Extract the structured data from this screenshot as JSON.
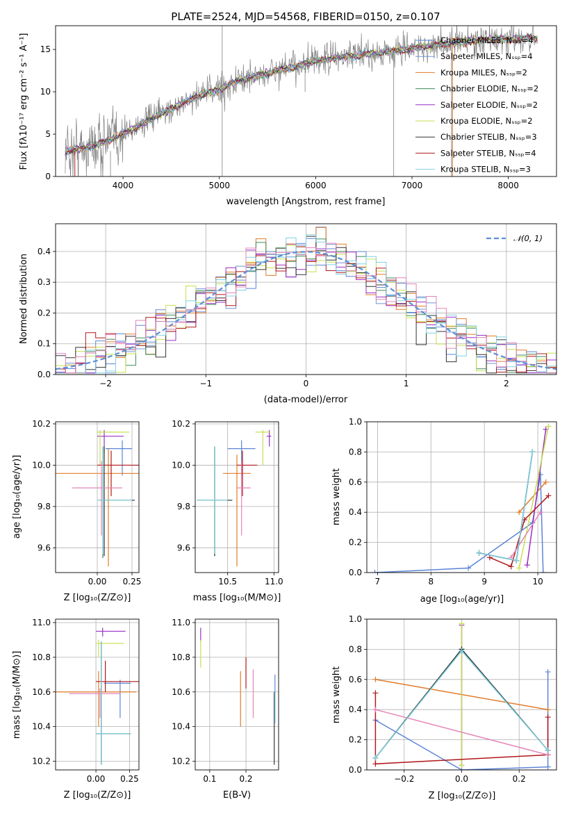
{
  "colors": {
    "chab_miles": "#5b84d6",
    "salp_miles": "#6b95d8",
    "krou_miles": "#e07b2a",
    "chab_elodie": "#3e8a5a",
    "salp_elodie": "#9a2fc4",
    "krou_elodie": "#c6e04e",
    "chab_stelib": "#333333",
    "salp_stelib": "#b0181c",
    "krou_stelib": "#7fd0e0",
    "pink": "#e484b8",
    "gray": "#7f7f7f",
    "normal": "#5b8fd6"
  },
  "chart_data": [
    {
      "type": "line",
      "title": "PLATE=2524, MJD=54568, FIBERID=0150, z=0.107",
      "xlabel": "wavelength [Angstrom, rest frame]",
      "ylabel": "Flux [fλ10⁻¹⁷ erg cm⁻² s⁻¹ A⁻¹]",
      "xlim": [
        3300,
        8500
      ],
      "ylim": [
        0,
        17.8
      ],
      "xticks": [
        "4000",
        "5000",
        "6000",
        "7000",
        "8000"
      ],
      "yticks": [
        "0",
        "5",
        "10",
        "15"
      ],
      "grid": false,
      "legend": "right",
      "series": [
        {
          "name": "Chabrier MILES, Nₛₛₚ=4",
          "color": "#5b84d6"
        },
        {
          "name": "Salpeter MILES, Nₛₛₚ=4",
          "color": "#6b95d8"
        },
        {
          "name": "Kroupa MILES, Nₛₛₚ=2",
          "color": "#e07b2a"
        },
        {
          "name": "Chabrier ELODIE, Nₛₛₚ=2",
          "color": "#3e8a5a"
        },
        {
          "name": "Salpeter ELODIE, Nₛₛₚ=2",
          "color": "#9a2fc4"
        },
        {
          "name": "Kroupa ELODIE, Nₛₛₚ=2",
          "color": "#c6e04e"
        },
        {
          "name": "Chabrier STELIB, Nₛₛₚ=3",
          "color": "#333333"
        },
        {
          "name": "Salpeter STELIB, Nₛₛₚ=4",
          "color": "#b0181c"
        },
        {
          "name": "Kroupa STELIB, Nₛₛₚ=3",
          "color": "#7fd0e0"
        }
      ],
      "continuum": {
        "x": [
          3400,
          3550,
          3700,
          3900,
          4000,
          4200,
          4500,
          4800,
          5000,
          5200,
          5500,
          5800,
          6000,
          6200,
          6500,
          6800,
          7000,
          7300,
          7600,
          8000,
          8300
        ],
        "y": [
          3.0,
          3.3,
          3.7,
          4.5,
          5.0,
          6.2,
          8.0,
          9.6,
          10.3,
          11.3,
          12.2,
          13.0,
          13.6,
          14.0,
          14.4,
          14.8,
          15.1,
          15.6,
          16.0,
          16.2,
          16.4
        ]
      }
    },
    {
      "type": "histogram",
      "xlabel": "(data-model)/error",
      "ylabel": "Normed distribution",
      "xlim": [
        -2.5,
        2.5
      ],
      "ylim": [
        0,
        0.49
      ],
      "xticks": [
        "−2",
        "−1",
        "0",
        "1",
        "2"
      ],
      "yticks": [
        "0.0",
        "0.1",
        "0.2",
        "0.3",
        "0.4"
      ],
      "grid": true,
      "legend": "top-right",
      "normal_label": "𝒩(0, 1)",
      "bin_width": 0.1
    },
    {
      "type": "scatter",
      "xlabel": "Z [log₁₀(Z/Z⊙)]",
      "ylabel": "age  [log₁₀(age/yr)]",
      "xlim": [
        -0.3,
        0.3
      ],
      "ylim": [
        9.48,
        10.21
      ],
      "xticks": [
        "0.00",
        "0.25"
      ],
      "yticks": [
        "9.6",
        "9.8",
        "10.0",
        "10.2"
      ],
      "points": [
        {
          "color": "#5b84d6",
          "x": 0.18,
          "y": 10.08,
          "xe": [
            0.06,
            0.25
          ],
          "ye": [
            9.95,
            10.12
          ]
        },
        {
          "color": "#e07b2a",
          "x": 0.08,
          "y": 9.96,
          "xe": [
            -0.3,
            0.3
          ],
          "ye": [
            9.51,
            10.08
          ]
        },
        {
          "color": "#3e8a5a",
          "x": 0.04,
          "y": 9.83,
          "xe": [
            0.02,
            0.26
          ],
          "ye": [
            9.55,
            10.09
          ]
        },
        {
          "color": "#9a2fc4",
          "x": 0.05,
          "y": 10.14,
          "xe": [
            0.0,
            0.19
          ],
          "ye": [
            10.06,
            10.17
          ]
        },
        {
          "color": "#c6e04e",
          "x": 0.02,
          "y": 10.16,
          "xe": [
            0.0,
            0.23
          ],
          "ye": [
            10.0,
            10.17
          ]
        },
        {
          "color": "#333333",
          "x": 0.05,
          "y": 9.83,
          "xe": [
            0.0,
            0.27
          ],
          "ye": [
            9.56,
            10.09
          ]
        },
        {
          "color": "#b0181c",
          "x": 0.1,
          "y": 10.0,
          "xe": [
            0.0,
            0.32
          ],
          "ye": [
            9.85,
            10.07
          ]
        },
        {
          "color": "#e484b8",
          "x": 0.03,
          "y": 9.89,
          "xe": [
            -0.18,
            0.18
          ],
          "ye": [
            9.66,
            10.02
          ]
        },
        {
          "color": "#7fd0e0",
          "x": 0.04,
          "y": 9.83,
          "xe": [
            0.0,
            0.25
          ],
          "ye": [
            9.57,
            10.09
          ]
        }
      ]
    },
    {
      "type": "scatter",
      "xlabel": "mass [log₁₀(M/M⊙)]",
      "xlim": [
        10.15,
        11.05
      ],
      "ylim": [
        9.48,
        10.21
      ],
      "xticks": [
        "10.5",
        "11.0"
      ],
      "yticks": [
        "9.6",
        "9.8",
        "10.0",
        "10.2"
      ],
      "points": [
        {
          "color": "#5b84d6",
          "x": 10.65,
          "y": 10.08,
          "xe": [
            10.5,
            10.8
          ],
          "ye": [
            9.95,
            10.12
          ]
        },
        {
          "color": "#e07b2a",
          "x": 10.6,
          "y": 9.96,
          "xe": [
            10.45,
            10.75
          ],
          "ye": [
            9.51,
            10.05
          ]
        },
        {
          "color": "#3e8a5a",
          "x": 10.36,
          "y": 9.83,
          "xe": [
            10.17,
            10.55
          ],
          "ye": [
            9.56,
            10.09
          ]
        },
        {
          "color": "#9a2fc4",
          "x": 10.95,
          "y": 10.14,
          "xe": [
            10.92,
            10.97
          ],
          "ye": [
            10.09,
            10.17
          ]
        },
        {
          "color": "#c6e04e",
          "x": 10.88,
          "y": 10.16,
          "xe": [
            10.8,
            10.95
          ],
          "ye": [
            10.0,
            10.17
          ]
        },
        {
          "color": "#333333",
          "x": 10.36,
          "y": 9.83,
          "xe": [
            10.17,
            10.55
          ],
          "ye": [
            9.56,
            10.09
          ]
        },
        {
          "color": "#b0181c",
          "x": 10.66,
          "y": 10.0,
          "xe": [
            10.6,
            10.82
          ],
          "ye": [
            9.85,
            10.07
          ]
        },
        {
          "color": "#e484b8",
          "x": 10.65,
          "y": 9.89,
          "xe": [
            10.6,
            10.75
          ],
          "ye": [
            9.66,
            10.02
          ]
        },
        {
          "color": "#7fd0e0",
          "x": 10.36,
          "y": 9.83,
          "xe": [
            10.17,
            10.5
          ],
          "ye": [
            9.57,
            10.09
          ]
        }
      ]
    },
    {
      "type": "line",
      "xlabel": "age  [log₁₀(age/yr)]",
      "ylabel": "mass weight",
      "xlim": [
        6.8,
        10.35
      ],
      "ylim": [
        0,
        1.0
      ],
      "xticks": [
        "7",
        "8",
        "9",
        "10"
      ],
      "yticks": [
        "0.0",
        "0.2",
        "0.4",
        "0.6",
        "0.8",
        "1.0"
      ],
      "grid": true,
      "series": [
        {
          "color": "#5b84d6",
          "x": [
            6.95,
            8.7,
            9.9,
            10.05,
            10.1
          ],
          "y": [
            0.0,
            0.03,
            0.33,
            0.65,
            0.0
          ]
        },
        {
          "color": "#e07b2a",
          "x": [
            9.65,
            10.15
          ],
          "y": [
            0.4,
            0.6
          ]
        },
        {
          "color": "#3e8a5a",
          "x": [
            8.9,
            9.6,
            9.9
          ],
          "y": [
            0.13,
            0.08,
            0.8
          ]
        },
        {
          "color": "#9a2fc4",
          "x": [
            9.8,
            10.15
          ],
          "y": [
            0.05,
            0.95
          ]
        },
        {
          "color": "#c6e04e",
          "x": [
            9.65,
            10.2
          ],
          "y": [
            0.03,
            0.97
          ]
        },
        {
          "color": "#333333",
          "x": [
            8.9,
            9.6,
            9.9
          ],
          "y": [
            0.13,
            0.08,
            0.8
          ]
        },
        {
          "color": "#b0181c",
          "x": [
            9.1,
            9.5,
            9.75,
            10.2
          ],
          "y": [
            0.1,
            0.04,
            0.35,
            0.51
          ]
        },
        {
          "color": "#e484b8",
          "x": [
            9.5,
            10.05
          ],
          "y": [
            0.1,
            0.4
          ]
        },
        {
          "color": "#7fd0e0",
          "x": [
            8.9,
            9.6,
            9.9
          ],
          "y": [
            0.13,
            0.08,
            0.8
          ]
        }
      ]
    },
    {
      "type": "scatter",
      "xlabel": "Z [log₁₀(Z/Z⊙)]",
      "ylabel": "mass [log₁₀(M/M⊙)]",
      "xlim": [
        -0.3,
        0.32
      ],
      "ylim": [
        10.15,
        11.02
      ],
      "xticks": [
        "0.00",
        "0.25"
      ],
      "yticks": [
        "10.2",
        "10.4",
        "10.6",
        "10.8",
        "11.0"
      ],
      "points": [
        {
          "color": "#5b84d6",
          "x": 0.18,
          "y": 10.65,
          "xe": [
            0.06,
            0.26
          ],
          "ye": [
            10.45,
            10.67
          ]
        },
        {
          "color": "#e07b2a",
          "x": 0.02,
          "y": 10.6,
          "xe": [
            -0.3,
            0.3
          ],
          "ye": [
            10.4,
            10.72
          ]
        },
        {
          "color": "#3e8a5a",
          "x": 0.04,
          "y": 10.36,
          "xe": [
            0.0,
            0.26
          ],
          "ye": [
            10.18,
            10.89
          ]
        },
        {
          "color": "#9a2fc4",
          "x": 0.05,
          "y": 10.95,
          "xe": [
            0.0,
            0.22
          ],
          "ye": [
            10.92,
            10.97
          ]
        },
        {
          "color": "#c6e04e",
          "x": 0.02,
          "y": 10.88,
          "xe": [
            0.0,
            0.21
          ],
          "ye": [
            10.8,
            10.9
          ]
        },
        {
          "color": "#333333",
          "x": 0.04,
          "y": 10.36,
          "xe": [
            0.0,
            0.26
          ],
          "ye": [
            10.18,
            10.89
          ]
        },
        {
          "color": "#b0181c",
          "x": 0.07,
          "y": 10.66,
          "xe": [
            0.0,
            0.32
          ],
          "ye": [
            10.6,
            10.78
          ]
        },
        {
          "color": "#e484b8",
          "x": 0.03,
          "y": 10.59,
          "xe": [
            -0.2,
            0.18
          ],
          "ye": [
            10.45,
            10.62
          ]
        },
        {
          "color": "#7fd0e0",
          "x": 0.04,
          "y": 10.36,
          "xe": [
            0.0,
            0.26
          ],
          "ye": [
            10.18,
            10.89
          ]
        }
      ]
    },
    {
      "type": "scatter",
      "xlabel": "E(B-V)",
      "xlim": [
        0.06,
        0.29
      ],
      "ylim": [
        10.15,
        11.02
      ],
      "xticks": [
        "0.1",
        "0.2"
      ],
      "yticks": [
        "10.2",
        "10.4",
        "10.6",
        "10.8",
        "11.0"
      ],
      "points": [
        {
          "color": "#5b84d6",
          "x": 0.28,
          "y": 10.55,
          "xe": [
            0.28,
            0.28
          ],
          "ye": [
            10.42,
            10.7
          ]
        },
        {
          "color": "#e07b2a",
          "x": 0.185,
          "y": 10.58,
          "xe": [
            0.185,
            0.185
          ],
          "ye": [
            10.4,
            10.72
          ]
        },
        {
          "color": "#9a2fc4",
          "x": 0.075,
          "y": 10.93,
          "xe": [
            0.075,
            0.075
          ],
          "ye": [
            10.89,
            10.97
          ]
        },
        {
          "color": "#c6e04e",
          "x": 0.075,
          "y": 10.82,
          "xe": [
            0.075,
            0.075
          ],
          "ye": [
            10.74,
            10.9
          ]
        },
        {
          "color": "#333333",
          "x": 0.278,
          "y": 10.4,
          "xe": [
            0.278,
            0.278
          ],
          "ye": [
            10.18,
            10.6
          ]
        },
        {
          "color": "#b0181c",
          "x": 0.2,
          "y": 10.7,
          "xe": [
            0.2,
            0.2
          ],
          "ye": [
            10.62,
            10.8
          ]
        },
        {
          "color": "#e484b8",
          "x": 0.22,
          "y": 10.6,
          "xe": [
            0.22,
            0.22
          ],
          "ye": [
            10.45,
            10.73
          ]
        },
        {
          "color": "#7fd0e0",
          "x": 0.28,
          "y": 10.5,
          "xe": [
            0.28,
            0.28
          ],
          "ye": [
            10.42,
            10.6
          ]
        }
      ]
    },
    {
      "type": "line",
      "xlabel": "Z [log₁₀(Z/Z⊙)]",
      "ylabel": "mass weight",
      "xlim": [
        -0.33,
        0.33
      ],
      "ylim": [
        0,
        1.0
      ],
      "xticks": [
        "−0.2",
        "0.0",
        "0.2"
      ],
      "yticks": [
        "0.0",
        "0.2",
        "0.4",
        "0.6",
        "0.8",
        "1.0"
      ],
      "grid": true,
      "series": [
        {
          "color": "#5b84d6",
          "x": [
            -0.3,
            0.0,
            0.3,
            0.3
          ],
          "y": [
            0.33,
            0.0,
            0.02,
            0.65
          ]
        },
        {
          "color": "#e07b2a",
          "x": [
            -0.3,
            0.3
          ],
          "y": [
            0.6,
            0.4
          ]
        },
        {
          "color": "#3e8a5a",
          "x": [
            -0.3,
            0.0,
            0.3
          ],
          "y": [
            0.08,
            0.8,
            0.13
          ]
        },
        {
          "color": "#9a2fc4",
          "x": [
            0.0,
            0.0
          ],
          "y": [
            0.03,
            0.96
          ]
        },
        {
          "color": "#c6e04e",
          "x": [
            0.0,
            0.0
          ],
          "y": [
            0.03,
            0.97
          ]
        },
        {
          "color": "#333333",
          "x": [
            -0.3,
            0.0,
            0.3
          ],
          "y": [
            0.08,
            0.8,
            0.13
          ]
        },
        {
          "color": "#b0181c",
          "x": [
            -0.3,
            -0.3,
            0.3,
            0.3,
            0.3
          ],
          "y": [
            0.51,
            0.04,
            0.1,
            0.35,
            0.1
          ]
        },
        {
          "color": "#e484b8",
          "x": [
            -0.3,
            0.3
          ],
          "y": [
            0.4,
            0.1
          ]
        },
        {
          "color": "#7fd0e0",
          "x": [
            -0.3,
            0.0,
            0.3
          ],
          "y": [
            0.08,
            0.79,
            0.13
          ]
        }
      ]
    }
  ]
}
